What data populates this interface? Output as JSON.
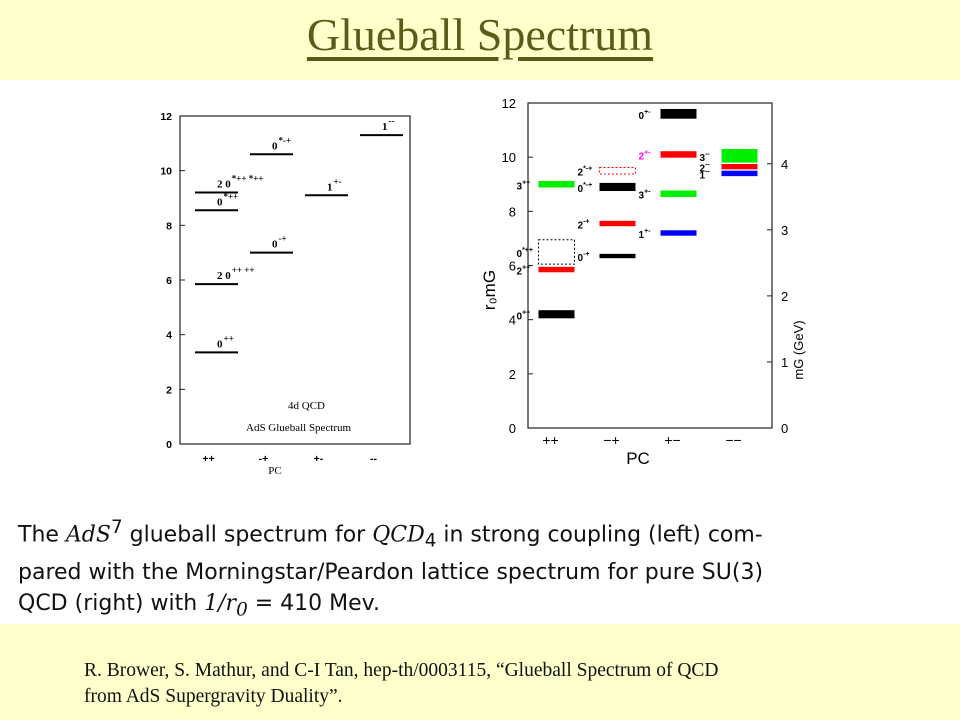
{
  "slide": {
    "title": "Glueball Spectrum",
    "caption": {
      "pre1": "The ",
      "math1_base": "AdS",
      "math1_sup": "7",
      "mid1": " glueball spectrum for ",
      "math2_base": "QCD",
      "math2_sub": "4",
      "post1": " in strong coupling (left) com-",
      "line2": "pared with the Morningstar/Peardon lattice spectrum for pure SU(3)",
      "pre3": "QCD (right) with ",
      "math3": "1/r",
      "math3_sub": "0",
      "post3": " = 410 Mev."
    },
    "citation_line1": "R. Brower, S. Mathur, and C-I Tan, hep-th/0003115, “Glueball Spectrum of QCD",
    "citation_line2": "from AdS Supergravity Duality”."
  },
  "chart_data": [
    {
      "type": "level-diagram",
      "xlabel": "PC",
      "x_categories": [
        "++",
        "-+",
        "+-",
        "--"
      ],
      "ylim": [
        0,
        12
      ],
      "y_ticks": [
        0,
        2,
        4,
        6,
        8,
        10,
        12
      ],
      "legend": [
        "4d  QCD",
        "AdS Glueball Spectrum"
      ],
      "levels": [
        {
          "pc": "++",
          "y": 3.35,
          "label": "0",
          "sup": "++"
        },
        {
          "pc": "++",
          "y": 5.85,
          "label": "2  0",
          "sup": "++  ++"
        },
        {
          "pc": "++",
          "y": 8.55,
          "label": "0",
          "sup": "*++"
        },
        {
          "pc": "++",
          "y": 9.2,
          "label": "2  0",
          "sup": "*++  *++"
        },
        {
          "pc": "-+",
          "y": 7.0,
          "label": "0",
          "sup": "-+"
        },
        {
          "pc": "-+",
          "y": 10.6,
          "label": "0",
          "sup": "*-+"
        },
        {
          "pc": "+-",
          "y": 9.1,
          "label": "1",
          "sup": "+-"
        },
        {
          "pc": "--",
          "y": 11.3,
          "label": "1",
          "sup": "--"
        }
      ]
    },
    {
      "type": "level-diagram",
      "xlabel": "PC",
      "x_categories": [
        "++",
        "−+",
        "+−",
        "−−"
      ],
      "ylabel": "r₀m_G",
      "ylim": [
        0,
        12
      ],
      "y_ticks": [
        0,
        2,
        4,
        6,
        8,
        10,
        12
      ],
      "y2label": "m_G (GeV)",
      "y2_ticks": [
        0,
        1,
        2,
        3,
        4
      ],
      "levels": [
        {
          "pc": "++",
          "y": 4.2,
          "err": 0.15,
          "label": "0",
          "sup": "++",
          "color": "#000000"
        },
        {
          "pc": "++",
          "y": 5.85,
          "err": 0.1,
          "label": "2",
          "sup": "++",
          "color": "#ff0000"
        },
        {
          "pc": "++",
          "y": 6.5,
          "err": 0.45,
          "label": "0",
          "sup": "*++",
          "color": "#000000",
          "dashed": true
        },
        {
          "pc": "++",
          "y": 9.0,
          "err": 0.12,
          "label": "3",
          "sup": "++",
          "color": "#00ee00"
        },
        {
          "pc": "−+",
          "y": 6.35,
          "err": 0.08,
          "label": "0",
          "sup": "-+",
          "color": "#000000"
        },
        {
          "pc": "−+",
          "y": 7.55,
          "err": 0.1,
          "label": "2",
          "sup": "-+",
          "color": "#ff0000"
        },
        {
          "pc": "−+",
          "y": 8.9,
          "err": 0.15,
          "label": "0",
          "sup": "*-+",
          "color": "#000000"
        },
        {
          "pc": "−+",
          "y": 9.5,
          "err": 0.12,
          "label": "2",
          "sup": "*-+",
          "color": "#ff0000",
          "dashed": true
        },
        {
          "pc": "+−",
          "y": 7.2,
          "err": 0.1,
          "label": "1",
          "sup": "+-",
          "color": "#0000ff"
        },
        {
          "pc": "+−",
          "y": 8.65,
          "err": 0.12,
          "label": "3",
          "sup": "+-",
          "color": "#00ee00"
        },
        {
          "pc": "+−",
          "y": 10.1,
          "err": 0.12,
          "label": "2",
          "sup": "+-",
          "color": "#ff0000"
        },
        {
          "pc": "+−",
          "y": 11.6,
          "err": 0.18,
          "label": "0",
          "sup": "+-",
          "color": "#000000"
        },
        {
          "pc": "−−",
          "y": 9.4,
          "err": 0.1,
          "label": "1",
          "sup": "--",
          "color": "#0000ff"
        },
        {
          "pc": "−−",
          "y": 9.65,
          "err": 0.1,
          "label": "2",
          "sup": "--",
          "color": "#ff0000"
        },
        {
          "pc": "−−",
          "y": 10.05,
          "err": 0.25,
          "label": "3",
          "sup": "--",
          "color": "#00ee00"
        }
      ]
    }
  ]
}
